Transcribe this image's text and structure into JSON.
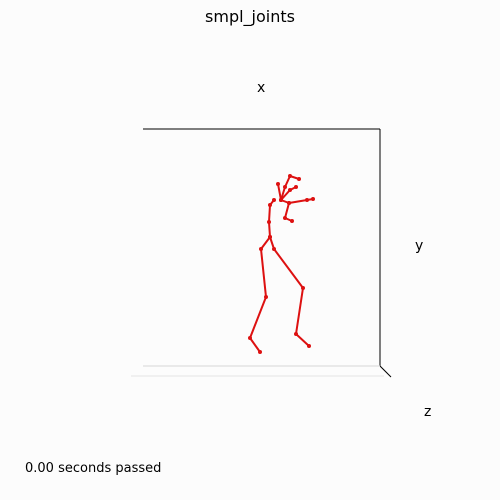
{
  "chart_data": {
    "type": "3d-line",
    "title": "smpl_joints",
    "axis_labels": {
      "x": "x",
      "y": "y",
      "z": "z"
    },
    "grid": false,
    "series_color": "#dd1111",
    "series": [
      {
        "name": "",
        "points": [
          [
            260,
            352
          ],
          [
            250,
            338
          ],
          [
            266,
            297
          ],
          [
            261,
            249
          ],
          [
            270,
            237
          ],
          [
            274,
            249
          ],
          [
            303,
            288
          ],
          [
            296,
            334
          ],
          [
            309,
            346
          ]
        ]
      },
      {
        "name": "",
        "points": [
          [
            270,
            237
          ],
          [
            269,
            222
          ],
          [
            270,
            205
          ],
          [
            274,
            200
          ]
        ]
      },
      {
        "name": "",
        "points": [
          [
            278,
            184
          ],
          [
            281,
            200
          ],
          [
            290,
            190
          ],
          [
            296,
            187
          ]
        ]
      },
      {
        "name": "",
        "points": [
          [
            281,
            200
          ],
          [
            285,
            187
          ],
          [
            290,
            176
          ],
          [
            299,
            179
          ]
        ]
      },
      {
        "name": "",
        "points": [
          [
            281,
            200
          ],
          [
            289,
            203
          ],
          [
            307,
            200
          ],
          [
            313,
            199
          ]
        ]
      },
      {
        "name": "",
        "points": [
          [
            289,
            203
          ],
          [
            285,
            218
          ],
          [
            292,
            221
          ]
        ]
      }
    ]
  },
  "status_text": "0.00 seconds passed"
}
